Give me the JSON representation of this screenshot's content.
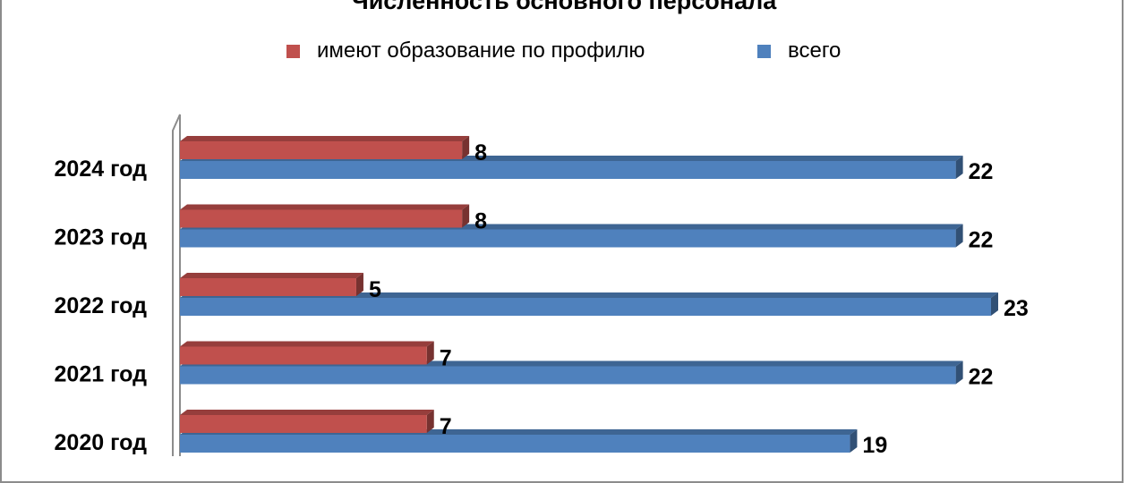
{
  "chart_data": {
    "type": "bar",
    "orientation": "horizontal",
    "title": "Численность основного персонала",
    "categories": [
      "2024 год",
      "2023 год",
      "2022 год",
      "2021 год",
      "2020 год"
    ],
    "series": [
      {
        "name": "имеют образование по профилю",
        "values": [
          8,
          8,
          5,
          7,
          7
        ],
        "color": "#C0504D"
      },
      {
        "name": "всего",
        "values": [
          22,
          22,
          23,
          22,
          19
        ],
        "color": "#4F81BD"
      }
    ],
    "xlim": [
      0,
      23
    ],
    "legend_position": "top",
    "grid": false
  }
}
